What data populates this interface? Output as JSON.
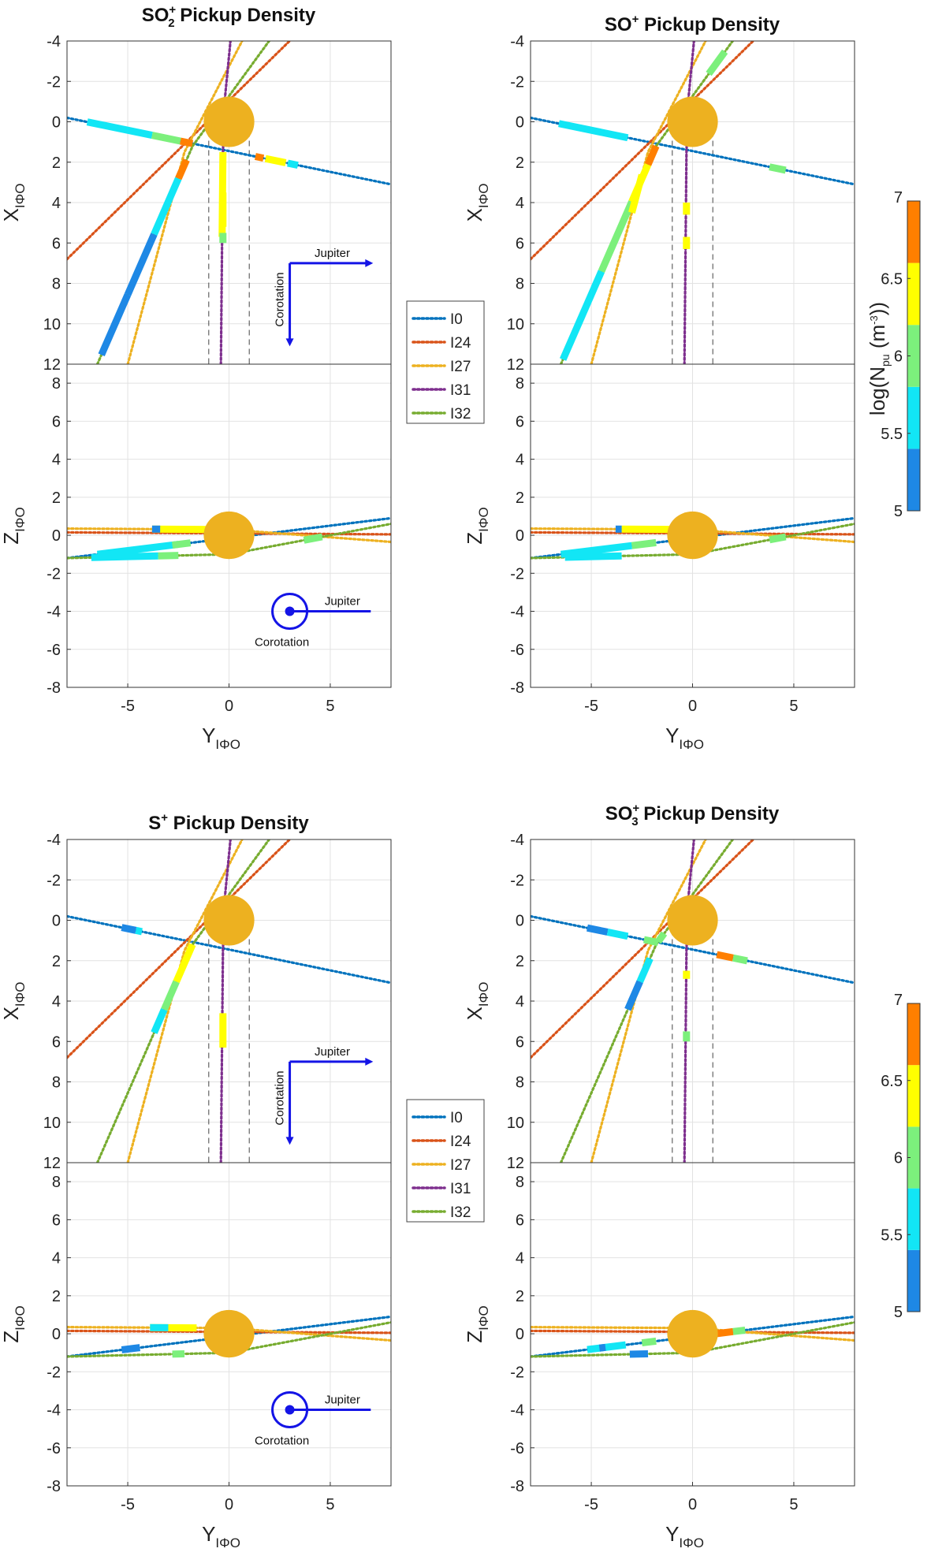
{
  "figure": {
    "colorbar_label": "log(N_pu (m^-3))",
    "colorbar_label_parts": {
      "a": "log(N",
      "sub": "pu",
      "b": " (m",
      "sup": "-3",
      "c": "))"
    },
    "axis_base_labels": {
      "x": "X",
      "y": "Y",
      "z": "Z"
    },
    "axis_sub": "IΦO",
    "panel_titles": [
      {
        "base": "SO",
        "sub": "2",
        "sup": "+",
        "rest": " Pickup Density"
      },
      {
        "base": "SO",
        "sub": "",
        "sup": "+",
        "rest": " Pickup Density"
      },
      {
        "base": "S",
        "sub": "",
        "sup": "+",
        "rest": " Pickup Density"
      },
      {
        "base": "SO",
        "sub": "3",
        "sup": "+",
        "rest": " Pickup Density"
      }
    ],
    "insets": {
      "jupiter": "Jupiter",
      "corotation": "Corotation"
    },
    "legend": [
      {
        "name": "I0",
        "color": "#0072BD"
      },
      {
        "name": "I24",
        "color": "#D95319"
      },
      {
        "name": "I27",
        "color": "#EDB120"
      },
      {
        "name": "I31",
        "color": "#7E2F8E"
      },
      {
        "name": "I32",
        "color": "#77AC30"
      }
    ],
    "colorbar": {
      "ticks": [
        "5",
        "5.5",
        "6",
        "6.5",
        "7"
      ],
      "levels": [
        {
          "from": 5.0,
          "to": 5.4,
          "color": "#1E88E5"
        },
        {
          "from": 5.4,
          "to": 5.8,
          "color": "#12E6F5"
        },
        {
          "from": 5.8,
          "to": 6.2,
          "color": "#7CF07C"
        },
        {
          "from": 6.2,
          "to": 6.6,
          "color": "#FFFF00"
        },
        {
          "from": 6.6,
          "to": 7.0,
          "color": "#FF7F00"
        }
      ]
    },
    "io_color": "#EDB120"
  },
  "chart_data": [
    {
      "type": "scatter",
      "title": "SO2+ Pickup Density",
      "panel": "top-left"
    },
    {
      "type": "scatter",
      "title": "SO+ Pickup Density",
      "panel": "top-right"
    },
    {
      "type": "scatter",
      "title": "S+ Pickup Density",
      "panel": "bottom-left"
    },
    {
      "type": "scatter",
      "title": "SO3+ Pickup Density",
      "panel": "bottom-right"
    },
    {
      "shared": {
        "xy_axes": {
          "xlabel": "Y_IΦO",
          "ylabel": "X_IΦO",
          "xlim": [
            -8,
            8
          ],
          "ylim": [
            -4,
            12
          ],
          "y_reversed": true,
          "xticks": [
            -5,
            0,
            5
          ],
          "yticks": [
            -4,
            -2,
            0,
            2,
            4,
            6,
            8,
            10,
            12
          ]
        },
        "yz_axes": {
          "xlabel": "Y_IΦO",
          "ylabel": "Z_IΦO",
          "xlim": [
            -8,
            8
          ],
          "ylim": [
            -8,
            9
          ],
          "xticks": [
            -5,
            0,
            5
          ],
          "yticks": [
            -8,
            -6,
            -4,
            -2,
            0,
            2,
            4,
            6,
            8
          ]
        },
        "grid": true,
        "legend_placement": "between columns",
        "io_disk": {
          "center": [
            0,
            0
          ],
          "radius": 1
        },
        "flybys_xy": [
          {
            "name": "I0",
            "points": [
              [
                -8,
                -0.2
              ],
              [
                8,
                3.1
              ]
            ]
          },
          {
            "name": "I24",
            "points": [
              [
                -8,
                6.8
              ],
              [
                3.5,
                -4.5
              ]
            ]
          },
          {
            "name": "I27",
            "points": [
              [
                -5,
                12
              ],
              [
                -2.2,
                1.5
              ],
              [
                0.8,
                -4.3
              ]
            ]
          },
          {
            "name": "I31",
            "points": [
              [
                -0.4,
                12
              ],
              [
                -0.3,
                1.5
              ],
              [
                -0.2,
                -1.2
              ],
              [
                0.1,
                -4.3
              ]
            ]
          },
          {
            "name": "I32",
            "points": [
              [
                -6.5,
                12
              ],
              [
                -1.8,
                1.2
              ],
              [
                2.2,
                -4.3
              ]
            ]
          }
        ],
        "flybys_yz": [
          {
            "name": "I0",
            "points": [
              [
                -8,
                -1.2
              ],
              [
                8,
                0.9
              ]
            ]
          },
          {
            "name": "I24",
            "points": [
              [
                -8,
                0.15
              ],
              [
                8,
                0.05
              ]
            ]
          },
          {
            "name": "I27",
            "points": [
              [
                -8,
                0.35
              ],
              [
                0,
                0.3
              ],
              [
                8,
                -0.35
              ]
            ]
          },
          {
            "name": "I31",
            "points": [
              [
                -0.6,
                0.6
              ],
              [
                0.6,
                0.5
              ]
            ]
          },
          {
            "name": "I32",
            "points": [
              [
                -8,
                -1.2
              ],
              [
                0,
                -1.0
              ],
              [
                5,
                0.0
              ],
              [
                8,
                0.6
              ]
            ]
          }
        ]
      }
    }
  ]
}
